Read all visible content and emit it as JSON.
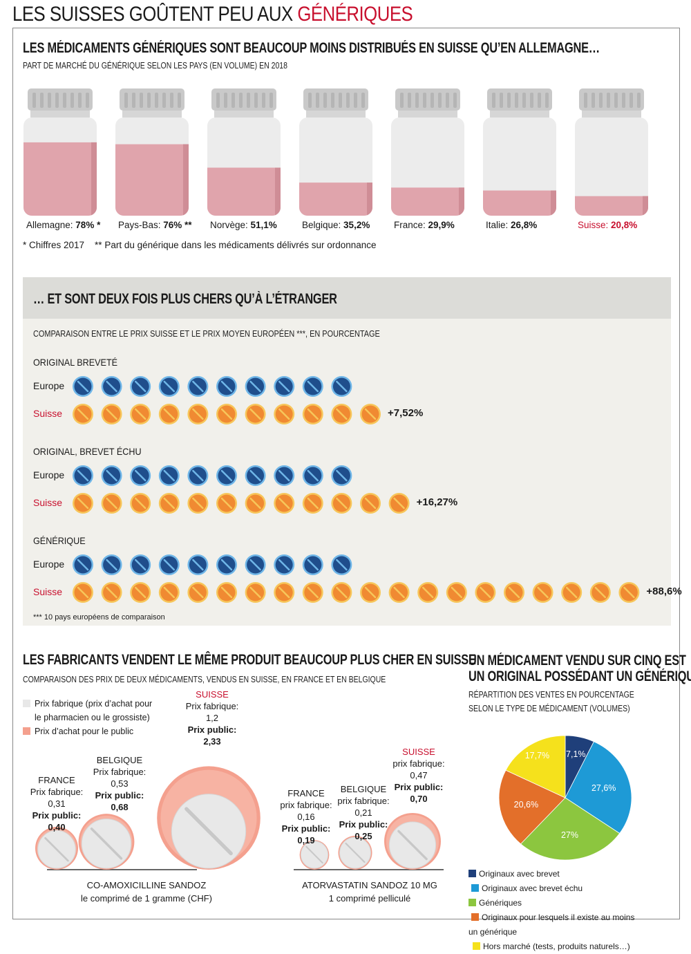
{
  "title": {
    "part1": "LES SUISSES GOÛTENT PEU AUX ",
    "part2": "GÉNÉRIQUES"
  },
  "colors": {
    "accent": "#c8102e",
    "bottle_fill": "#e0a4ac",
    "bottle_glass": "#ececec",
    "cap": "#c9c9c9",
    "europe_pill": "#1f4e8c",
    "swiss_pill": "#f08a32",
    "pill_pink": "#f4a08e"
  },
  "section1": {
    "title": "LES MÉDICAMENTS GÉNÉRIQUES SONT BEAUCOUP MOINS DISTRIBUÉS EN SUISSE QU’EN ALLEMAGNE…",
    "subtitle": "PART DE MARCHÉ DU GÉNÉRIQUE SELON LES PAYS (EN VOLUME) EN 2018",
    "notes": "* Chiffres 2017    ** Part du générique dans les médicaments délivrés sur ordonnance"
  },
  "section2": {
    "title": "… ET SONT DEUX FOIS PLUS CHERS QU’À L’ÉTRANGER",
    "subtitle": "COMPARAISON ENTRE LE PRIX SUISSE ET LE PRIX MOYEN EUROPÉEN ***, EN POURCENTAGE",
    "europe_label": "Europe",
    "swiss_label": "Suisse",
    "footnote": "*** 10 pays européens de comparaison"
  },
  "section3": {
    "title": "LES FABRICANTS VENDENT LE MÊME PRODUIT BEAUCOUP PLUS CHER EN SUISSE",
    "subtitle": "COMPARAISON DES PRIX DE DEUX MÉDICAMENTS, VENDUS EN SUISSE, EN FRANCE ET EN BELGIQUE",
    "legend_factory": "Prix fabrique (prix d’achat pour",
    "legend_factory2": "le pharmacien ou le grossiste)",
    "legend_public": "Prix d’achat pour le public",
    "drug1_name": "CO-AMOXICILLINE SANDOZ",
    "drug1_unit": "le comprimé de 1 gramme (CHF)",
    "drug2_name": "ATORVASTATIN SANDOZ 10 MG",
    "drug2_unit": "1 comprimé pelliculé",
    "drug1": {
      "france": {
        "country": "FRANCE",
        "factory_label": "Prix fabrique:",
        "factory": "0,31",
        "public_label": "Prix public:",
        "public": "0,40"
      },
      "belgique": {
        "country": "BELGIQUE",
        "factory_label": "Prix fabrique:",
        "factory": "0,53",
        "public_label": "Prix public:",
        "public": "0,68"
      },
      "suisse": {
        "country": "SUISSE",
        "factory_label": "Prix fabrique:",
        "factory": "1,2",
        "public_label": "Prix public:",
        "public": "2,33"
      }
    },
    "drug2": {
      "france": {
        "country": "FRANCE",
        "factory_label": "prix fabrique:",
        "factory": "0,16",
        "public_label": "Prix public:",
        "public": "0,19"
      },
      "belgique": {
        "country": "BELGIQUE",
        "factory_label": "prix fabrique:",
        "factory": "0,21",
        "public_label": "Prix public:",
        "public": "0,25"
      },
      "suisse": {
        "country": "SUISSE",
        "factory_label": "prix fabrique:",
        "factory": "0,47",
        "public_label": "Prix public:",
        "public": "0,70"
      }
    }
  },
  "section4": {
    "title1": "UN MÉDICAMENT VENDU SUR CINQ EST",
    "title2": "UN ORIGINAL POSSÉDANT UN GÉNÉRIQUE",
    "subtitle1": "RÉPARTITION DES VENTES EN POURCENTAGE",
    "subtitle2": "SELON LE TYPE DE MÉDICAMENT (VOLUMES)"
  },
  "chart_data": [
    {
      "type": "bar",
      "title": "LES MÉDICAMENTS GÉNÉRIQUES SONT BEAUCOUP MOINS DISTRIBUÉS EN SUISSE QU’EN ALLEMAGNE…",
      "subtitle": "PART DE MARCHÉ DU GÉNÉRIQUE SELON LES PAYS (EN VOLUME) EN 2018",
      "categories": [
        "Allemagne",
        "Pays-Bas",
        "Norvège",
        "Belgique",
        "France",
        "Italie",
        "Suisse"
      ],
      "values": [
        78,
        76,
        51.1,
        35.2,
        29.9,
        26.8,
        20.8
      ],
      "value_labels": [
        "78% *",
        "76% **",
        "51,1%",
        "35,2%",
        "29,9%",
        "26,8%",
        "20,8%"
      ],
      "label_prefix": [
        "Allemagne: ",
        "Pays-Bas: ",
        "Norvège: ",
        "Belgique: ",
        "France: ",
        "Italie: ",
        "Suisse: "
      ],
      "ylim": [
        0,
        100
      ],
      "highlight": "Suisse"
    },
    {
      "type": "bar",
      "title": "… ET SONT DEUX FOIS PLUS CHERS QU’À L’ÉTRANGER",
      "groups": [
        {
          "name": "ORIGINAL BREVETÉ",
          "europe_units": 10,
          "swiss_units": 11,
          "diff_label": "+7,52%",
          "diff": 7.52
        },
        {
          "name": "ORIGINAL, BREVET ÉCHU",
          "europe_units": 10,
          "swiss_units": 12,
          "diff_label": "+16,27%",
          "diff": 16.27
        },
        {
          "name": "GÉNÉRIQUE",
          "europe_units": 10,
          "swiss_units": 20,
          "diff_label": "+88,6%",
          "diff": 88.6
        }
      ]
    },
    {
      "type": "scatter",
      "title": "LES FABRICANTS VENDENT LE MÊME PRODUIT BEAUCOUP PLUS CHER EN SUISSE",
      "series": [
        {
          "name": "CO-AMOXICILLINE SANDOZ",
          "categories": [
            "FRANCE",
            "BELGIQUE",
            "SUISSE"
          ],
          "factory": [
            0.31,
            0.53,
            1.2
          ],
          "public": [
            0.4,
            0.68,
            2.33
          ]
        },
        {
          "name": "ATORVASTATIN SANDOZ 10 MG",
          "categories": [
            "FRANCE",
            "BELGIQUE",
            "SUISSE"
          ],
          "factory": [
            0.16,
            0.21,
            0.47
          ],
          "public": [
            0.19,
            0.25,
            0.7
          ]
        }
      ]
    },
    {
      "type": "pie",
      "title": "UN MÉDICAMENT VENDU SUR CINQ EST UN ORIGINAL POSSÉDANT UN GÉNÉRIQUE",
      "categories": [
        "Originaux avec brevet",
        "Originaux avec brevet échu",
        "Génériques",
        "Originaux pour lesquels il existe au moins un générique",
        "Hors marché (tests, produits naturels…)"
      ],
      "values": [
        7.1,
        27.6,
        27,
        20.6,
        17.7
      ],
      "value_labels": [
        "7,1%",
        "27,6%",
        "27%",
        "20,6%",
        "17,7%"
      ],
      "colors": [
        "#1f3f7a",
        "#1e9ad6",
        "#8cc63f",
        "#e36f2a",
        "#f5e11c"
      ],
      "legend_prefix_1": "Originaux avec brevet",
      "legend_prefix_2": "Originaux avec brevet échu",
      "legend_prefix_3": "Génériques",
      "legend_prefix_4": "Originaux pour lesquels il existe au moins",
      "legend_prefix_4b": "un générique",
      "legend_prefix_5": "Hors marché (tests, produits naturels…)"
    }
  ]
}
